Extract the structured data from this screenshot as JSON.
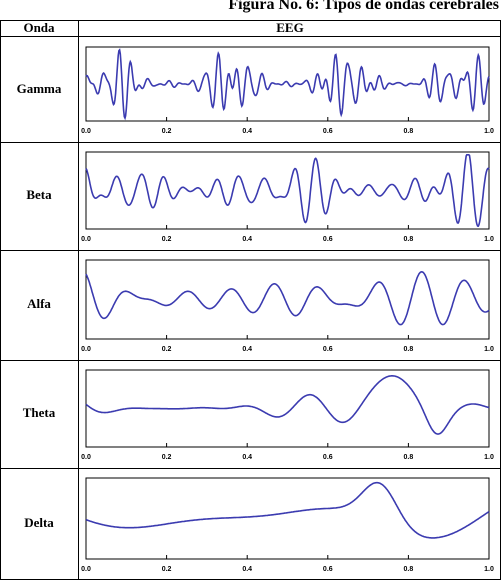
{
  "caption": "Figura No. 6: Tipos de ondas cerebrales",
  "table": {
    "col_wave": "Onda",
    "col_eeg": "EEG"
  },
  "chart_data": [
    {
      "type": "line",
      "name": "Gamma",
      "xlim": [
        0.0,
        1.0
      ],
      "ticks": [
        "0.0",
        "0.2",
        "0.4",
        "0.6",
        "0.8",
        "1.0"
      ],
      "components": [
        [
          28,
          0.55
        ],
        [
          37,
          0.4
        ],
        [
          45,
          0.3
        ]
      ],
      "envelope_amp": 0.55,
      "envelope_freq": 3.5
    },
    {
      "type": "line",
      "name": "Beta",
      "xlim": [
        0.0,
        1.0
      ],
      "ticks": [
        "0.0",
        "0.2",
        "0.4",
        "0.6",
        "0.8",
        "1.0"
      ],
      "components": [
        [
          16,
          0.55
        ],
        [
          21,
          0.45
        ],
        [
          24,
          0.25
        ]
      ],
      "envelope_amp": 0.4,
      "envelope_freq": 2.2
    },
    {
      "type": "line",
      "name": "Alfa",
      "xlim": [
        0.0,
        1.0
      ],
      "ticks": [
        "0.0",
        "0.2",
        "0.4",
        "0.6",
        "0.8",
        "1.0"
      ],
      "components": [
        [
          8.5,
          0.6
        ],
        [
          10.5,
          0.45
        ]
      ],
      "envelope_amp": 0.35,
      "envelope_freq": 1.3
    },
    {
      "type": "line",
      "name": "Theta",
      "xlim": [
        0.0,
        1.0
      ],
      "ticks": [
        "0.0",
        "0.2",
        "0.4",
        "0.6",
        "0.8",
        "1.0"
      ],
      "components": [
        [
          5.2,
          0.35
        ],
        [
          6.8,
          0.25
        ]
      ],
      "envelope_amp": 0.55,
      "envelope_freq": 1.1,
      "peak": [
        0.77,
        0.78,
        0.87,
        -0.7
      ]
    },
    {
      "type": "line",
      "name": "Delta",
      "xlim": [
        0.0,
        1.0
      ],
      "ticks": [
        "0.0",
        "0.2",
        "0.4",
        "0.6",
        "0.8",
        "1.0"
      ],
      "components": [
        [
          1.6,
          0.45
        ],
        [
          2.4,
          0.25
        ]
      ],
      "envelope_amp": 0.2,
      "envelope_freq": 0.5,
      "peak": [
        0.73,
        0.95
      ]
    }
  ],
  "colors": {
    "line": "#3b3bb0",
    "frame": "#000000"
  }
}
